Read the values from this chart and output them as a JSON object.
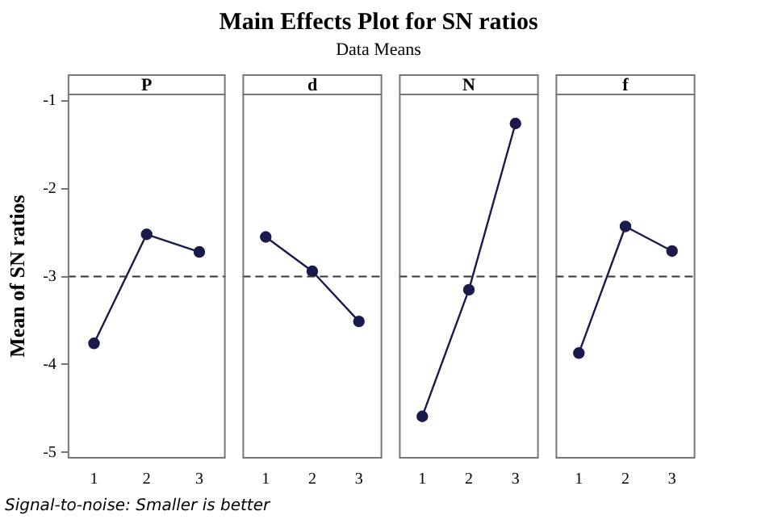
{
  "chart_data": [
    {
      "type": "other",
      "title": "Main Effects Plot for SN ratios",
      "subtitle": "Data Means",
      "annotations": [
        "Signal-to-noise: Smaller is better"
      ]
    },
    {
      "type": "line",
      "title": "P",
      "ylabel": "Mean of SN ratios",
      "categories": [
        "1",
        "2",
        "3"
      ],
      "series": [
        {
          "color": "#1a1a4e",
          "values": [
            -3.76,
            -2.52,
            -2.72
          ]
        }
      ],
      "ylim": [
        -5.07,
        -0.92
      ],
      "yticks": [
        -5,
        -4,
        -3,
        -2,
        -1
      ],
      "ref_lines": [
        {
          "axis": "y",
          "value": -3,
          "line_style": "dashed"
        }
      ],
      "grid": false,
      "legend": false,
      "marker": "circle",
      "line_style": "solid"
    },
    {
      "type": "line",
      "title": "d",
      "categories": [
        "1",
        "2",
        "3"
      ],
      "series": [
        {
          "color": "#1a1a4e",
          "values": [
            -2.55,
            -2.94,
            -3.51
          ]
        }
      ],
      "ylim": [
        -5.07,
        -0.92
      ],
      "yticks": [
        -5,
        -4,
        -3,
        -2,
        -1
      ],
      "tick_labels": "x",
      "ref_lines": [
        {
          "axis": "y",
          "value": -3,
          "line_style": "dashed"
        }
      ],
      "grid": false,
      "legend": false,
      "marker": "circle",
      "line_style": "solid"
    },
    {
      "type": "line",
      "title": "N",
      "categories": [
        "1",
        "2",
        "3"
      ],
      "series": [
        {
          "color": "#1a1a4e",
          "values": [
            -4.59,
            -3.15,
            -1.26
          ]
        }
      ],
      "ylim": [
        -5.07,
        -0.92
      ],
      "yticks": [
        -5,
        -4,
        -3,
        -2,
        -1
      ],
      "tick_labels": "x",
      "ref_lines": [
        {
          "axis": "y",
          "value": -3,
          "line_style": "dashed"
        }
      ],
      "grid": false,
      "legend": false,
      "marker": "circle",
      "line_style": "solid"
    },
    {
      "type": "line",
      "title": "f",
      "categories": [
        "1",
        "2",
        "3"
      ],
      "series": [
        {
          "color": "#1a1a4e",
          "values": [
            -3.87,
            -2.43,
            -2.71
          ]
        }
      ],
      "ylim": [
        -5.07,
        -0.92
      ],
      "yticks": [
        -5,
        -4,
        -3,
        -2,
        -1
      ],
      "tick_labels": "x",
      "ref_lines": [
        {
          "axis": "y",
          "value": -3,
          "line_style": "dashed"
        }
      ],
      "grid": false,
      "legend": false,
      "marker": "circle",
      "line_style": "solid"
    }
  ]
}
